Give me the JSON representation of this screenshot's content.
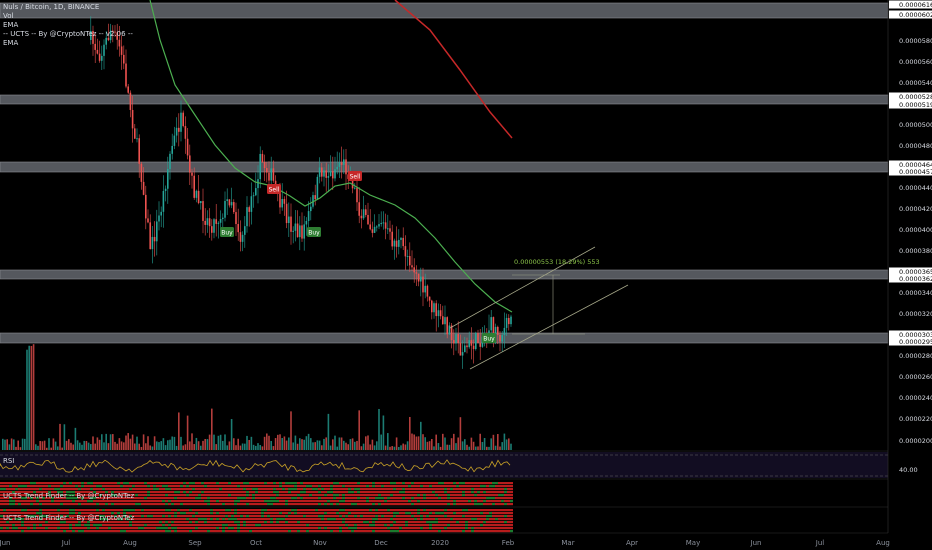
{
  "header": {
    "symbol_line": "Nuls / Bitcoin, 1D, BINANCE",
    "indicators": [
      "Vol",
      "EMA",
      "-- UCTS -- By @CryptoNTez -- v2.06 --",
      "EMA"
    ]
  },
  "price_axis": {
    "labels": [
      "0.00005800",
      "0.00005600",
      "0.00005400",
      "0.00005000",
      "0.00004800",
      "0.00004400",
      "0.00004200",
      "0.00004000",
      "0.00003800",
      "0.00003400",
      "0.00003200",
      "0.00002800",
      "0.00002600",
      "0.00002400",
      "0.00002200",
      "0.00002000"
    ],
    "tags": [
      "0.00006168",
      "0.00006020",
      "0.00005280",
      "0.00005196",
      "0.00004644",
      "0.00004574",
      "0.00003657",
      "0.00003625",
      "0.00003033",
      "0.00002956"
    ]
  },
  "time_axis": [
    "Jun",
    "Jul",
    "Aug",
    "Sep",
    "Oct",
    "Nov",
    "Dec",
    "2020",
    "Feb",
    "Mar",
    "Apr",
    "May",
    "Jun",
    "Jul",
    "Aug"
  ],
  "signals": [
    {
      "label": "Buy",
      "kind": "buy"
    },
    {
      "label": "Buy",
      "kind": "buy"
    },
    {
      "label": "Buy",
      "kind": "buy"
    },
    {
      "label": "Sell",
      "kind": "sell"
    },
    {
      "label": "Sell",
      "kind": "sell"
    }
  ],
  "measure_label": "0.00000553 (18.29%) 553",
  "rsi": {
    "label": "RSI",
    "level_label": "40.00"
  },
  "trend_panels": [
    "UCTS Trend Finder -- By @CryptoNTez",
    "UCTS Trend Finder -- By @CryptoNTez"
  ],
  "colors": {
    "up": "#26a69a",
    "down": "#ef5350",
    "ema_short": "#4caf50",
    "ema_long": "#c62828",
    "zone": "#6b6e75",
    "rsi_line": "#c9a227"
  }
}
